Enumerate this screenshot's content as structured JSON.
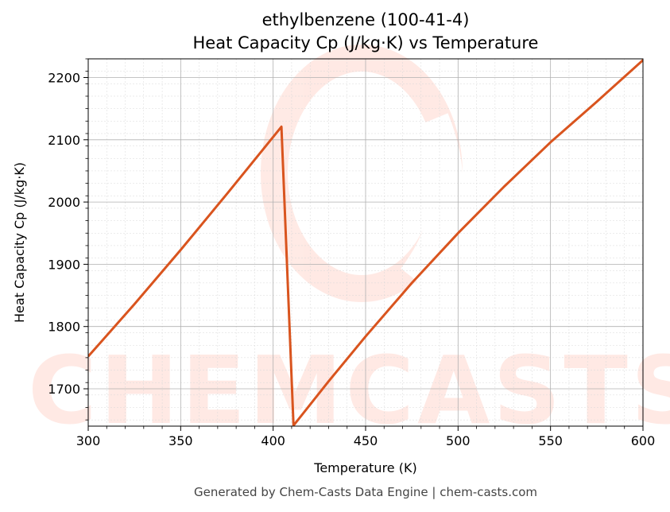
{
  "chart_data": {
    "type": "line",
    "title": "ethylbenzene (100-41-4)",
    "subtitle": "Heat Capacity Cp (J/kg·K) vs Temperature",
    "xlabel": "Temperature (K)",
    "ylabel": "Heat Capacity Cp (J/kg·K)",
    "xlim": [
      300,
      600
    ],
    "ylim": [
      1640,
      2230
    ],
    "xticks": [
      300,
      350,
      400,
      450,
      500,
      550,
      600
    ],
    "yticks": [
      1700,
      1800,
      1900,
      2000,
      2100,
      2200
    ],
    "grid": true,
    "series": [
      {
        "color": "#d9541e",
        "x": [
          300,
          325,
          350,
          375,
          404.5,
          411,
          430,
          450,
          475,
          500,
          525,
          550,
          575,
          600
        ],
        "y": [
          1752,
          1836,
          1923,
          2013,
          2121,
          1641,
          1712,
          1784,
          1870,
          1950,
          2025,
          2096,
          2161,
          2228
        ]
      }
    ]
  },
  "watermark": "CHEMCASTS",
  "footer": "Generated by Chem-Casts Data Engine | chem-casts.com"
}
